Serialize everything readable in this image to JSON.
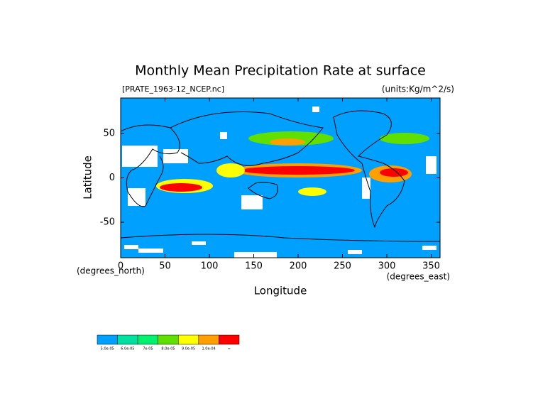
{
  "chart_data": {
    "type": "map",
    "title": "Monthly Mean Precipitation Rate at surface",
    "subtitle_left": "[PRATE_1963-12_NCEP.nc]",
    "subtitle_right": "(units:Kg/m^2/s)",
    "xlabel": "Longitude",
    "ylabel": "Latitude",
    "x_unit": "(degrees_east)",
    "y_unit": "(degrees_north)",
    "xlim": [
      0,
      360
    ],
    "ylim": [
      -90,
      90
    ],
    "xticks": [
      0,
      50,
      100,
      150,
      200,
      250,
      300,
      350
    ],
    "yticks": [
      -50,
      0,
      50
    ],
    "colorbar": {
      "colors": [
        "#00a0ff",
        "#00e0a0",
        "#00f070",
        "#60e000",
        "#ffff00",
        "#ffa000",
        "#ff0000"
      ],
      "labels": [
        "5.0e-05",
        "6.0e-05",
        "7e-05",
        "8.0e-05",
        "9.0e-05",
        "1.0e-04",
        "∞"
      ]
    }
  }
}
